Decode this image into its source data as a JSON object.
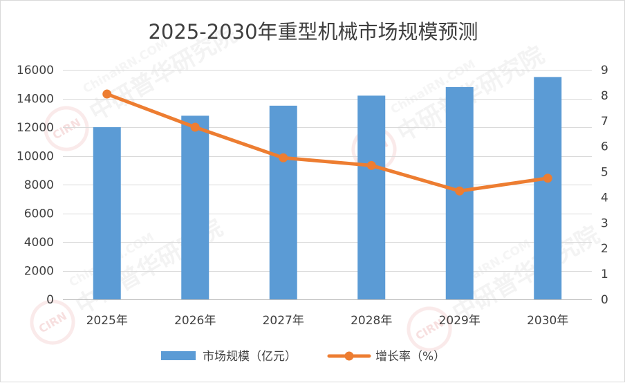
{
  "chart_data": {
    "type": "bar",
    "title": "2025-2030年重型机械市场规模预测",
    "categories": [
      "2025年",
      "2026年",
      "2027年",
      "2028年",
      "2029年",
      "2030年"
    ],
    "series": [
      {
        "name": "市场规模（亿元）",
        "type": "bar",
        "axis": "left",
        "color": "#5b9bd5",
        "values": [
          12000,
          12800,
          13500,
          14200,
          14800,
          15500
        ]
      },
      {
        "name": "增长率（%）",
        "type": "line",
        "axis": "right",
        "color": "#ed7d31",
        "values": [
          8.05,
          6.75,
          5.55,
          5.25,
          4.25,
          4.75
        ]
      }
    ],
    "ylim_left": [
      0,
      16000
    ],
    "yticks_left": [
      "0",
      "2000",
      "4000",
      "6000",
      "8000",
      "10000",
      "12000",
      "14000",
      "16000"
    ],
    "ylim_right": [
      0,
      9
    ],
    "yticks_right": [
      "0",
      "1",
      "2",
      "3",
      "4",
      "5",
      "6",
      "7",
      "8",
      "9"
    ],
    "grid": true,
    "legend_position": "bottom"
  },
  "watermark": {
    "text_cn": "中研普华研究院",
    "text_en": "ChinaIRN.COM",
    "logo": "CIRN"
  }
}
